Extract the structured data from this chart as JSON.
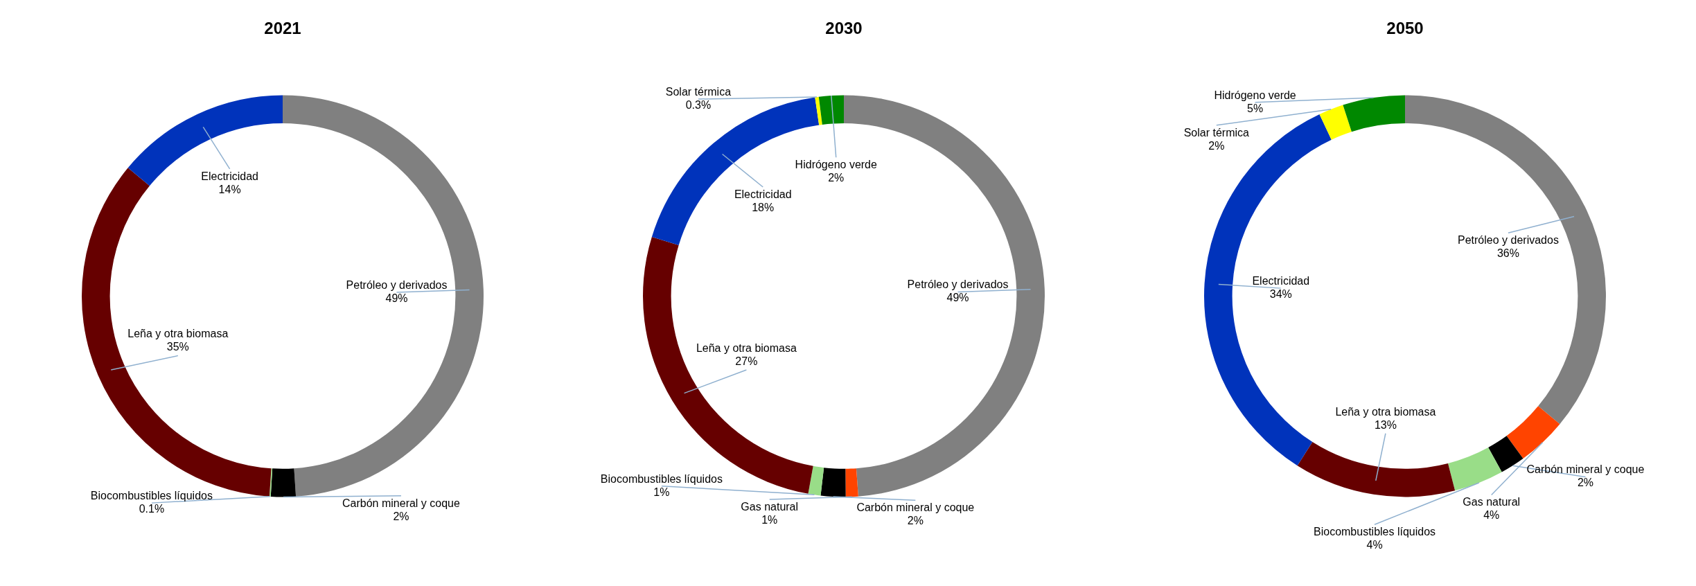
{
  "chart_data": [
    {
      "type": "donut",
      "title": "2021",
      "categories": [
        "Petróleo y derivados",
        "Carbón mineral y coque",
        "Biocombustibles líquidos",
        "Leña y otra biomasa",
        "Electricidad"
      ],
      "values": [
        49,
        2,
        0.1,
        35,
        14
      ],
      "value_labels": [
        "49%",
        "2%",
        "0.1%",
        "35%",
        "14%"
      ],
      "colors": [
        "#808080",
        "#000000",
        "#99dd88",
        "#660000",
        "#0033bb"
      ],
      "legend": false
    },
    {
      "type": "donut",
      "title": "2030",
      "categories": [
        "Petróleo y derivados",
        "Gas natural",
        "Carbón mineral y coque",
        "Biocombustibles líquidos",
        "Leña y otra biomasa",
        "Electricidad",
        "Solar térmica",
        "Hidrógeno verde"
      ],
      "values": [
        49,
        1,
        2,
        1,
        27,
        18,
        0.3,
        2
      ],
      "value_labels": [
        "49%",
        "1%",
        "2%",
        "1%",
        "27%",
        "18%",
        "0.3%",
        "2%"
      ],
      "colors": [
        "#808080",
        "#ff4400",
        "#000000",
        "#99dd88",
        "#660000",
        "#0033bb",
        "#ffff00",
        "#008800"
      ],
      "legend": false
    },
    {
      "type": "donut",
      "title": "2050",
      "categories": [
        "Petróleo y derivados",
        "Gas natural",
        "Carbón mineral y coque",
        "Biocombustibles líquidos",
        "Leña y otra biomasa",
        "Electricidad",
        "Solar térmica",
        "Hidrógeno verde"
      ],
      "values": [
        36,
        4,
        2,
        4,
        13,
        34,
        2,
        5
      ],
      "value_labels": [
        "36%",
        "4%",
        "2%",
        "4%",
        "13%",
        "34%",
        "2%",
        "5%"
      ],
      "colors": [
        "#808080",
        "#ff4400",
        "#000000",
        "#99dd88",
        "#660000",
        "#0033bb",
        "#ffff00",
        "#008800"
      ],
      "legend": false
    }
  ]
}
